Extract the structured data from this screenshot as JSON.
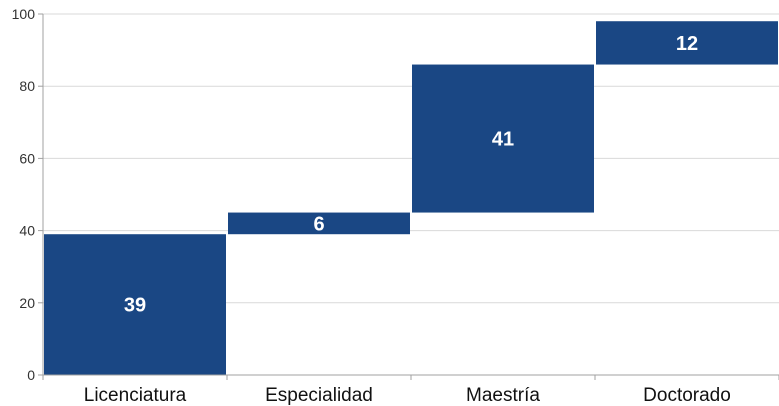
{
  "chart_data": {
    "type": "bar",
    "subtype": "waterfall",
    "categories": [
      "Licenciatura",
      "Especialidad",
      "Maestría",
      "Doctorado"
    ],
    "values": [
      39,
      6,
      41,
      12
    ],
    "ylim": [
      0,
      100
    ],
    "yticks": [
      0,
      20,
      40,
      60,
      80,
      100
    ],
    "grid": true,
    "legend": "none",
    "bar_color": "#1a4784",
    "label_color": "#ffffff"
  }
}
